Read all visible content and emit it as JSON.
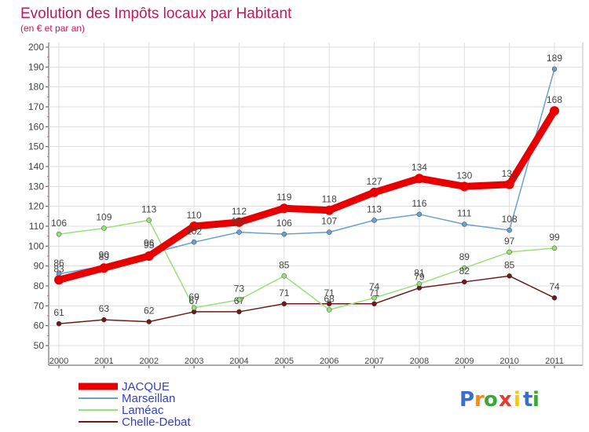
{
  "chart_data": {
    "type": "line",
    "title": "Evolution des Impôts locaux par Habitant",
    "subtitle": "(en € et par an)",
    "x": [
      "2000",
      "2001",
      "2002",
      "2003",
      "2004",
      "2005",
      "2006",
      "2007",
      "2008",
      "2009",
      "2010",
      "2011"
    ],
    "ylim": [
      50,
      200
    ],
    "yticks": [
      50,
      60,
      70,
      80,
      90,
      100,
      110,
      120,
      130,
      140,
      150,
      160,
      170,
      180,
      190,
      200
    ],
    "grid": true,
    "series": [
      {
        "name": "JACQUE",
        "color": "#e80000",
        "values": [
          83,
          89,
          95,
          110,
          112,
          119,
          118,
          127,
          134,
          130,
          131,
          168
        ]
      },
      {
        "name": "Marseillan",
        "color": "#6aa0d0",
        "values": [
          86,
          90,
          96,
          102,
          107,
          106,
          107,
          113,
          116,
          111,
          108,
          189
        ]
      },
      {
        "name": "Laméac",
        "color": "#99e07a",
        "values": [
          106,
          109,
          113,
          69,
          73,
          85,
          68,
          74,
          81,
          89,
          97,
          99
        ]
      },
      {
        "name": "Chelle-Debat",
        "color": "#6e1a1a",
        "values": [
          61,
          63,
          62,
          67,
          67,
          71,
          71,
          71,
          79,
          82,
          85,
          74
        ]
      }
    ],
    "data_labels": [
      {
        "series": 0,
        "values": [
          "83",
          "89",
          "95",
          "110",
          "112",
          "119",
          "118",
          "127",
          "134",
          "130",
          "131",
          "168"
        ]
      },
      {
        "series": 1,
        "values": [
          "86",
          "90",
          "96",
          "102",
          "107",
          "106",
          "107",
          "113",
          "116",
          "111",
          "108",
          "189"
        ]
      },
      {
        "series": 2,
        "values": [
          "106",
          "109",
          "113",
          "69",
          "73",
          "85",
          "68",
          "74",
          "81",
          "89",
          "97",
          "99"
        ]
      },
      {
        "series": 3,
        "values": [
          "61",
          "63",
          "62",
          "67",
          "67",
          "71",
          "71",
          "71",
          "79",
          "82",
          "85",
          "74"
        ]
      }
    ],
    "legend_position": "bottom-left"
  },
  "brand": {
    "letters": [
      "P",
      "r",
      "o",
      "x",
      "i",
      "t",
      "i"
    ],
    "colors": [
      "#3a6fc9",
      "#f08a1c",
      "#3aa835",
      "#e23a2c",
      "#f0c61c",
      "#3a6fc9",
      "#3aa835"
    ]
  },
  "colors": {
    "title": "#c2185b",
    "axis": "#555555",
    "grid": "#dddddd",
    "tick_mark": "#e06080",
    "label": "#444444",
    "border": "#bbbbbb"
  }
}
